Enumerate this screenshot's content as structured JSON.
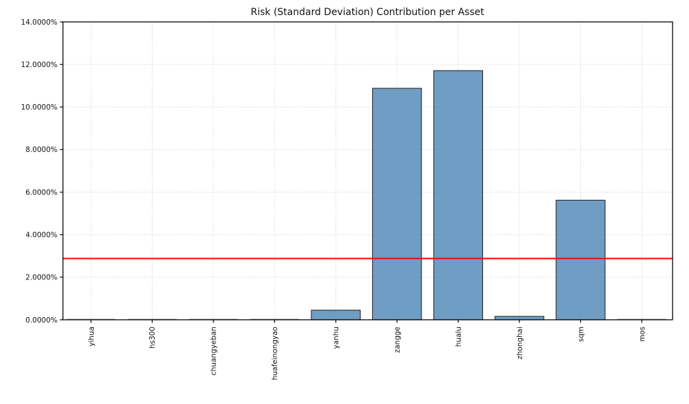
{
  "chart_data": {
    "type": "bar",
    "title": "Risk (Standard Deviation) Contribution per Asset",
    "categories": [
      "yihua",
      "hs300",
      "chuangyeban",
      "huafeinongyao",
      "yanhu",
      "zangge",
      "hualu",
      "zhonghai",
      "sqm",
      "mos"
    ],
    "values": [
      0.0,
      0.0,
      0.0,
      0.0,
      0.45,
      10.88,
      11.71,
      0.16,
      5.62,
      0.0
    ],
    "unit": "%",
    "xlabel": "",
    "ylabel": "",
    "ylim": [
      0,
      14
    ],
    "ytick_step": 2,
    "ytick_decimals": 4,
    "ytick_labels": [
      "0.0000%",
      "2.0000%",
      "4.0000%",
      "6.0000%",
      "8.0000%",
      "10.0000%",
      "12.0000%",
      "14.0000%"
    ],
    "grid": true,
    "legend": "none",
    "reference_line": {
      "value": 2.88,
      "color": "#ff0000"
    },
    "colors": {
      "bar_fill": "#4682b4",
      "bar_fill_opacity": 0.78,
      "bar_edge": "#262626",
      "zero_bar_edge": "#9a9a9a",
      "grid": "#c2c2c2",
      "spine": "#000000",
      "text": "#111111",
      "background": "#ffffff"
    }
  }
}
